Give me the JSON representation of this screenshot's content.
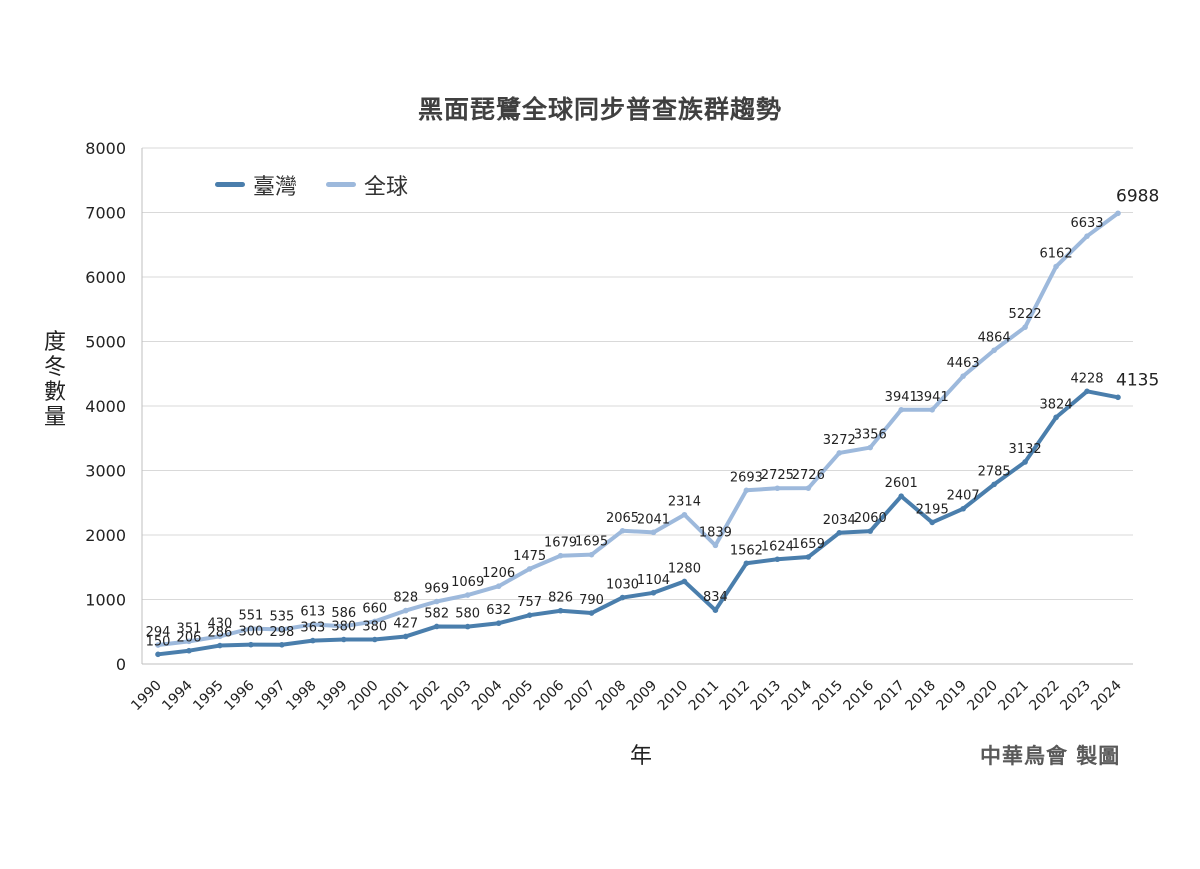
{
  "chart_data": {
    "type": "line",
    "title": "黑面琵鷺全球同步普查族群趨勢",
    "xlabel": "年",
    "ylabel": "度冬數量",
    "credit": "中華鳥會 製圖",
    "categories": [
      "1990",
      "1994",
      "1995",
      "1996",
      "1997",
      "1998",
      "1999",
      "2000",
      "2001",
      "2002",
      "2003",
      "2004",
      "2005",
      "2006",
      "2007",
      "2008",
      "2009",
      "2010",
      "2011",
      "2012",
      "2013",
      "2014",
      "2015",
      "2016",
      "2017",
      "2018",
      "2019",
      "2020",
      "2021",
      "2022",
      "2023",
      "2024"
    ],
    "ylim": [
      0,
      8000
    ],
    "yticks": [
      0,
      1000,
      2000,
      3000,
      4000,
      5000,
      6000,
      7000,
      8000
    ],
    "grid": true,
    "legend_position": "top-left",
    "series": [
      {
        "name": "臺灣",
        "color": "#4a7eac",
        "values": [
          150,
          206,
          286,
          300,
          298,
          363,
          380,
          380,
          427,
          582,
          580,
          632,
          757,
          826,
          790,
          1030,
          1104,
          1280,
          834,
          1562,
          1624,
          1659,
          2034,
          2060,
          2601,
          2195,
          2407,
          2785,
          3132,
          3824,
          4228,
          4135
        ]
      },
      {
        "name": "全球",
        "color": "#9db9dc",
        "values": [
          294,
          351,
          430,
          551,
          535,
          613,
          586,
          660,
          828,
          969,
          1069,
          1206,
          1475,
          1679,
          1695,
          2065,
          2041,
          2314,
          1839,
          2693,
          2725,
          2726,
          3272,
          3356,
          3941,
          3941,
          4463,
          4864,
          5222,
          6162,
          6633,
          6988
        ]
      }
    ]
  }
}
